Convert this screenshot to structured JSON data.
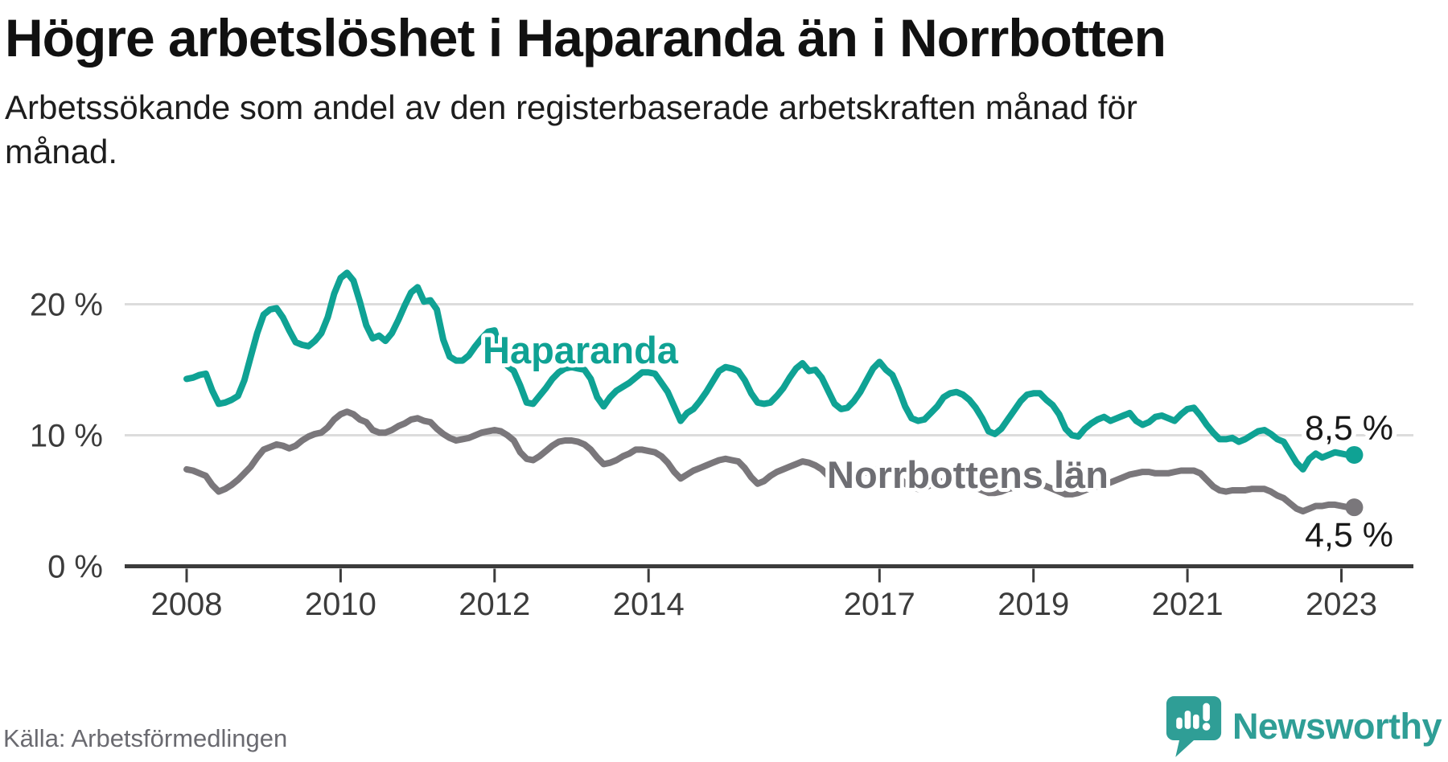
{
  "header": {
    "title": "Högre arbetslöshet i Haparanda än i Norrbotten",
    "subtitle": "Arbetssökande som andel av den registerbaserade arbetskraften månad för månad."
  },
  "footer": {
    "source": "Källa: Arbetsförmedlingen",
    "logo_text": "Newsworthy",
    "logo_icon": "speech-bubble-bar-chart-exclamation"
  },
  "colors": {
    "haparanda": "#0fa294",
    "norrbotten": "#7a777b",
    "norrbotten_label": "#6e6e73",
    "grid": "#dcdcdc",
    "axis": "#3c3c3c",
    "value_label": "#191919",
    "logo": "#2f9e96"
  },
  "chart_data": {
    "type": "line",
    "title": "Högre arbetslöshet i Haparanda än i Norrbotten",
    "xlabel": "",
    "ylabel": "Arbetssökande som andel av den registerbaserade arbetskraften",
    "x_start_year": 2008,
    "x_step_months": 1,
    "x_end": "2023-03",
    "x_ticks": [
      {
        "year": 2008,
        "label": "2008"
      },
      {
        "year": 2010,
        "label": "2010"
      },
      {
        "year": 2012,
        "label": "2012"
      },
      {
        "year": 2014,
        "label": "2014"
      },
      {
        "year": 2017,
        "label": "2017"
      },
      {
        "year": 2019,
        "label": "2019"
      },
      {
        "year": 2021,
        "label": "2021"
      },
      {
        "year": 2023,
        "label": "2023"
      }
    ],
    "y_ticks": [
      {
        "value": 0,
        "label": "0 %"
      },
      {
        "value": 10,
        "label": "10 %"
      },
      {
        "value": 20,
        "label": "20 %"
      }
    ],
    "ylim": [
      0,
      24
    ],
    "grid": "horizontal-only",
    "legend_position": "inline-labels",
    "series": [
      {
        "name": "Haparanda",
        "end_label": "8,5 %",
        "end_value": 8.5,
        "values": [
          14.3,
          14.4,
          14.6,
          14.7,
          13.4,
          12.4,
          12.5,
          12.7,
          13.0,
          14.2,
          16.0,
          17.8,
          19.2,
          19.6,
          19.7,
          19.0,
          18.0,
          17.1,
          16.9,
          16.8,
          17.2,
          17.8,
          19.0,
          20.8,
          22.0,
          22.4,
          21.8,
          20.2,
          18.4,
          17.4,
          17.6,
          17.2,
          17.8,
          18.8,
          19.9,
          20.9,
          21.3,
          20.2,
          20.3,
          19.6,
          17.3,
          16.0,
          15.7,
          15.7,
          16.1,
          16.8,
          17.4,
          17.9,
          18.0,
          16.3,
          15.3,
          14.9,
          13.8,
          12.5,
          12.4,
          13.0,
          13.6,
          14.3,
          14.8,
          15.1,
          15.2,
          15.1,
          15.0,
          14.3,
          12.9,
          12.2,
          12.9,
          13.4,
          13.7,
          14.0,
          14.4,
          14.8,
          14.8,
          14.7,
          14.0,
          13.3,
          12.2,
          11.1,
          11.7,
          12.0,
          12.6,
          13.3,
          14.1,
          14.9,
          15.2,
          15.1,
          14.9,
          14.2,
          13.2,
          12.5,
          12.4,
          12.5,
          13.0,
          13.6,
          14.4,
          15.1,
          15.5,
          14.9,
          15.0,
          14.4,
          13.4,
          12.4,
          12.0,
          12.1,
          12.6,
          13.3,
          14.2,
          15.1,
          15.6,
          15.0,
          14.6,
          13.5,
          12.2,
          11.3,
          11.1,
          11.2,
          11.7,
          12.2,
          12.9,
          13.2,
          13.3,
          13.1,
          12.7,
          12.1,
          11.3,
          10.3,
          10.1,
          10.5,
          11.2,
          11.9,
          12.6,
          13.1,
          13.2,
          13.2,
          12.7,
          12.3,
          11.6,
          10.5,
          10.0,
          9.9,
          10.5,
          10.9,
          11.2,
          11.4,
          11.1,
          11.3,
          11.5,
          11.7,
          11.1,
          10.8,
          11.0,
          11.4,
          11.5,
          11.3,
          11.1,
          11.6,
          12.0,
          12.1,
          11.5,
          10.8,
          10.2,
          9.7,
          9.7,
          9.8,
          9.5,
          9.7,
          10.0,
          10.3,
          10.4,
          10.1,
          9.7,
          9.5,
          8.7,
          7.9,
          7.4,
          8.2,
          8.6,
          8.3,
          8.5,
          8.7,
          8.6,
          8.5,
          8.5
        ]
      },
      {
        "name": "Norrbottens län",
        "end_label": "4,5 %",
        "end_value": 4.5,
        "values": [
          7.4,
          7.3,
          7.1,
          6.9,
          6.2,
          5.7,
          5.9,
          6.2,
          6.6,
          7.1,
          7.6,
          8.3,
          8.9,
          9.1,
          9.3,
          9.2,
          9.0,
          9.2,
          9.6,
          9.9,
          10.1,
          10.2,
          10.6,
          11.2,
          11.6,
          11.8,
          11.6,
          11.2,
          11.0,
          10.4,
          10.2,
          10.2,
          10.4,
          10.7,
          10.9,
          11.2,
          11.3,
          11.1,
          11.0,
          10.5,
          10.1,
          9.8,
          9.6,
          9.7,
          9.8,
          10.0,
          10.2,
          10.3,
          10.4,
          10.3,
          10.0,
          9.6,
          8.7,
          8.2,
          8.1,
          8.4,
          8.8,
          9.2,
          9.5,
          9.6,
          9.6,
          9.5,
          9.3,
          8.9,
          8.3,
          7.8,
          7.9,
          8.1,
          8.4,
          8.6,
          8.9,
          8.9,
          8.8,
          8.7,
          8.4,
          7.9,
          7.2,
          6.7,
          7.0,
          7.3,
          7.5,
          7.7,
          7.9,
          8.1,
          8.2,
          8.1,
          8.0,
          7.5,
          6.8,
          6.3,
          6.5,
          6.9,
          7.2,
          7.4,
          7.6,
          7.8,
          8.0,
          7.9,
          7.7,
          7.4,
          6.9,
          6.6,
          6.5,
          6.6,
          6.8,
          7.0,
          7.2,
          7.3,
          7.4,
          7.3,
          7.1,
          6.8,
          6.3,
          6.0,
          5.9,
          6.0,
          6.2,
          6.4,
          6.5,
          6.6,
          6.6,
          6.5,
          6.3,
          6.0,
          5.8,
          5.6,
          5.6,
          5.7,
          5.9,
          6.0,
          6.2,
          6.3,
          6.4,
          6.3,
          6.1,
          5.9,
          5.7,
          5.5,
          5.5,
          5.6,
          5.8,
          6.0,
          6.1,
          6.2,
          6.4,
          6.6,
          6.8,
          7.0,
          7.1,
          7.2,
          7.2,
          7.1,
          7.1,
          7.1,
          7.2,
          7.3,
          7.3,
          7.3,
          7.1,
          6.6,
          6.1,
          5.8,
          5.7,
          5.8,
          5.8,
          5.8,
          5.9,
          5.9,
          5.9,
          5.7,
          5.4,
          5.2,
          4.8,
          4.4,
          4.2,
          4.4,
          4.6,
          4.6,
          4.7,
          4.7,
          4.6,
          4.5,
          4.5
        ]
      }
    ]
  }
}
